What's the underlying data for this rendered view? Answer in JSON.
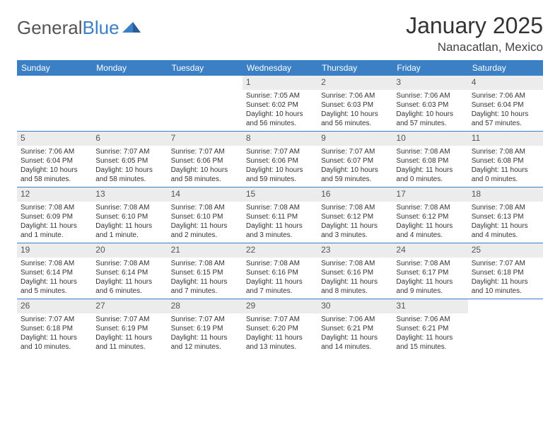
{
  "brand": {
    "part1": "General",
    "part2": "Blue"
  },
  "title": "January 2025",
  "location": "Nanacatlan, Mexico",
  "colors": {
    "header_bg": "#3b7fc4",
    "daynum_bg": "#ececec",
    "rule": "#3b7fc4",
    "text": "#333333",
    "brand_blue": "#3b7fc4"
  },
  "day_names": [
    "Sunday",
    "Monday",
    "Tuesday",
    "Wednesday",
    "Thursday",
    "Friday",
    "Saturday"
  ],
  "weeks": [
    [
      {
        "n": "",
        "sr": "",
        "ss": "",
        "dl": ""
      },
      {
        "n": "",
        "sr": "",
        "ss": "",
        "dl": ""
      },
      {
        "n": "",
        "sr": "",
        "ss": "",
        "dl": ""
      },
      {
        "n": "1",
        "sr": "Sunrise: 7:05 AM",
        "ss": "Sunset: 6:02 PM",
        "dl": "Daylight: 10 hours and 56 minutes."
      },
      {
        "n": "2",
        "sr": "Sunrise: 7:06 AM",
        "ss": "Sunset: 6:03 PM",
        "dl": "Daylight: 10 hours and 56 minutes."
      },
      {
        "n": "3",
        "sr": "Sunrise: 7:06 AM",
        "ss": "Sunset: 6:03 PM",
        "dl": "Daylight: 10 hours and 57 minutes."
      },
      {
        "n": "4",
        "sr": "Sunrise: 7:06 AM",
        "ss": "Sunset: 6:04 PM",
        "dl": "Daylight: 10 hours and 57 minutes."
      }
    ],
    [
      {
        "n": "5",
        "sr": "Sunrise: 7:06 AM",
        "ss": "Sunset: 6:04 PM",
        "dl": "Daylight: 10 hours and 58 minutes."
      },
      {
        "n": "6",
        "sr": "Sunrise: 7:07 AM",
        "ss": "Sunset: 6:05 PM",
        "dl": "Daylight: 10 hours and 58 minutes."
      },
      {
        "n": "7",
        "sr": "Sunrise: 7:07 AM",
        "ss": "Sunset: 6:06 PM",
        "dl": "Daylight: 10 hours and 58 minutes."
      },
      {
        "n": "8",
        "sr": "Sunrise: 7:07 AM",
        "ss": "Sunset: 6:06 PM",
        "dl": "Daylight: 10 hours and 59 minutes."
      },
      {
        "n": "9",
        "sr": "Sunrise: 7:07 AM",
        "ss": "Sunset: 6:07 PM",
        "dl": "Daylight: 10 hours and 59 minutes."
      },
      {
        "n": "10",
        "sr": "Sunrise: 7:08 AM",
        "ss": "Sunset: 6:08 PM",
        "dl": "Daylight: 11 hours and 0 minutes."
      },
      {
        "n": "11",
        "sr": "Sunrise: 7:08 AM",
        "ss": "Sunset: 6:08 PM",
        "dl": "Daylight: 11 hours and 0 minutes."
      }
    ],
    [
      {
        "n": "12",
        "sr": "Sunrise: 7:08 AM",
        "ss": "Sunset: 6:09 PM",
        "dl": "Daylight: 11 hours and 1 minute."
      },
      {
        "n": "13",
        "sr": "Sunrise: 7:08 AM",
        "ss": "Sunset: 6:10 PM",
        "dl": "Daylight: 11 hours and 1 minute."
      },
      {
        "n": "14",
        "sr": "Sunrise: 7:08 AM",
        "ss": "Sunset: 6:10 PM",
        "dl": "Daylight: 11 hours and 2 minutes."
      },
      {
        "n": "15",
        "sr": "Sunrise: 7:08 AM",
        "ss": "Sunset: 6:11 PM",
        "dl": "Daylight: 11 hours and 3 minutes."
      },
      {
        "n": "16",
        "sr": "Sunrise: 7:08 AM",
        "ss": "Sunset: 6:12 PM",
        "dl": "Daylight: 11 hours and 3 minutes."
      },
      {
        "n": "17",
        "sr": "Sunrise: 7:08 AM",
        "ss": "Sunset: 6:12 PM",
        "dl": "Daylight: 11 hours and 4 minutes."
      },
      {
        "n": "18",
        "sr": "Sunrise: 7:08 AM",
        "ss": "Sunset: 6:13 PM",
        "dl": "Daylight: 11 hours and 4 minutes."
      }
    ],
    [
      {
        "n": "19",
        "sr": "Sunrise: 7:08 AM",
        "ss": "Sunset: 6:14 PM",
        "dl": "Daylight: 11 hours and 5 minutes."
      },
      {
        "n": "20",
        "sr": "Sunrise: 7:08 AM",
        "ss": "Sunset: 6:14 PM",
        "dl": "Daylight: 11 hours and 6 minutes."
      },
      {
        "n": "21",
        "sr": "Sunrise: 7:08 AM",
        "ss": "Sunset: 6:15 PM",
        "dl": "Daylight: 11 hours and 7 minutes."
      },
      {
        "n": "22",
        "sr": "Sunrise: 7:08 AM",
        "ss": "Sunset: 6:16 PM",
        "dl": "Daylight: 11 hours and 7 minutes."
      },
      {
        "n": "23",
        "sr": "Sunrise: 7:08 AM",
        "ss": "Sunset: 6:16 PM",
        "dl": "Daylight: 11 hours and 8 minutes."
      },
      {
        "n": "24",
        "sr": "Sunrise: 7:08 AM",
        "ss": "Sunset: 6:17 PM",
        "dl": "Daylight: 11 hours and 9 minutes."
      },
      {
        "n": "25",
        "sr": "Sunrise: 7:07 AM",
        "ss": "Sunset: 6:18 PM",
        "dl": "Daylight: 11 hours and 10 minutes."
      }
    ],
    [
      {
        "n": "26",
        "sr": "Sunrise: 7:07 AM",
        "ss": "Sunset: 6:18 PM",
        "dl": "Daylight: 11 hours and 10 minutes."
      },
      {
        "n": "27",
        "sr": "Sunrise: 7:07 AM",
        "ss": "Sunset: 6:19 PM",
        "dl": "Daylight: 11 hours and 11 minutes."
      },
      {
        "n": "28",
        "sr": "Sunrise: 7:07 AM",
        "ss": "Sunset: 6:19 PM",
        "dl": "Daylight: 11 hours and 12 minutes."
      },
      {
        "n": "29",
        "sr": "Sunrise: 7:07 AM",
        "ss": "Sunset: 6:20 PM",
        "dl": "Daylight: 11 hours and 13 minutes."
      },
      {
        "n": "30",
        "sr": "Sunrise: 7:06 AM",
        "ss": "Sunset: 6:21 PM",
        "dl": "Daylight: 11 hours and 14 minutes."
      },
      {
        "n": "31",
        "sr": "Sunrise: 7:06 AM",
        "ss": "Sunset: 6:21 PM",
        "dl": "Daylight: 11 hours and 15 minutes."
      },
      {
        "n": "",
        "sr": "",
        "ss": "",
        "dl": ""
      }
    ]
  ]
}
